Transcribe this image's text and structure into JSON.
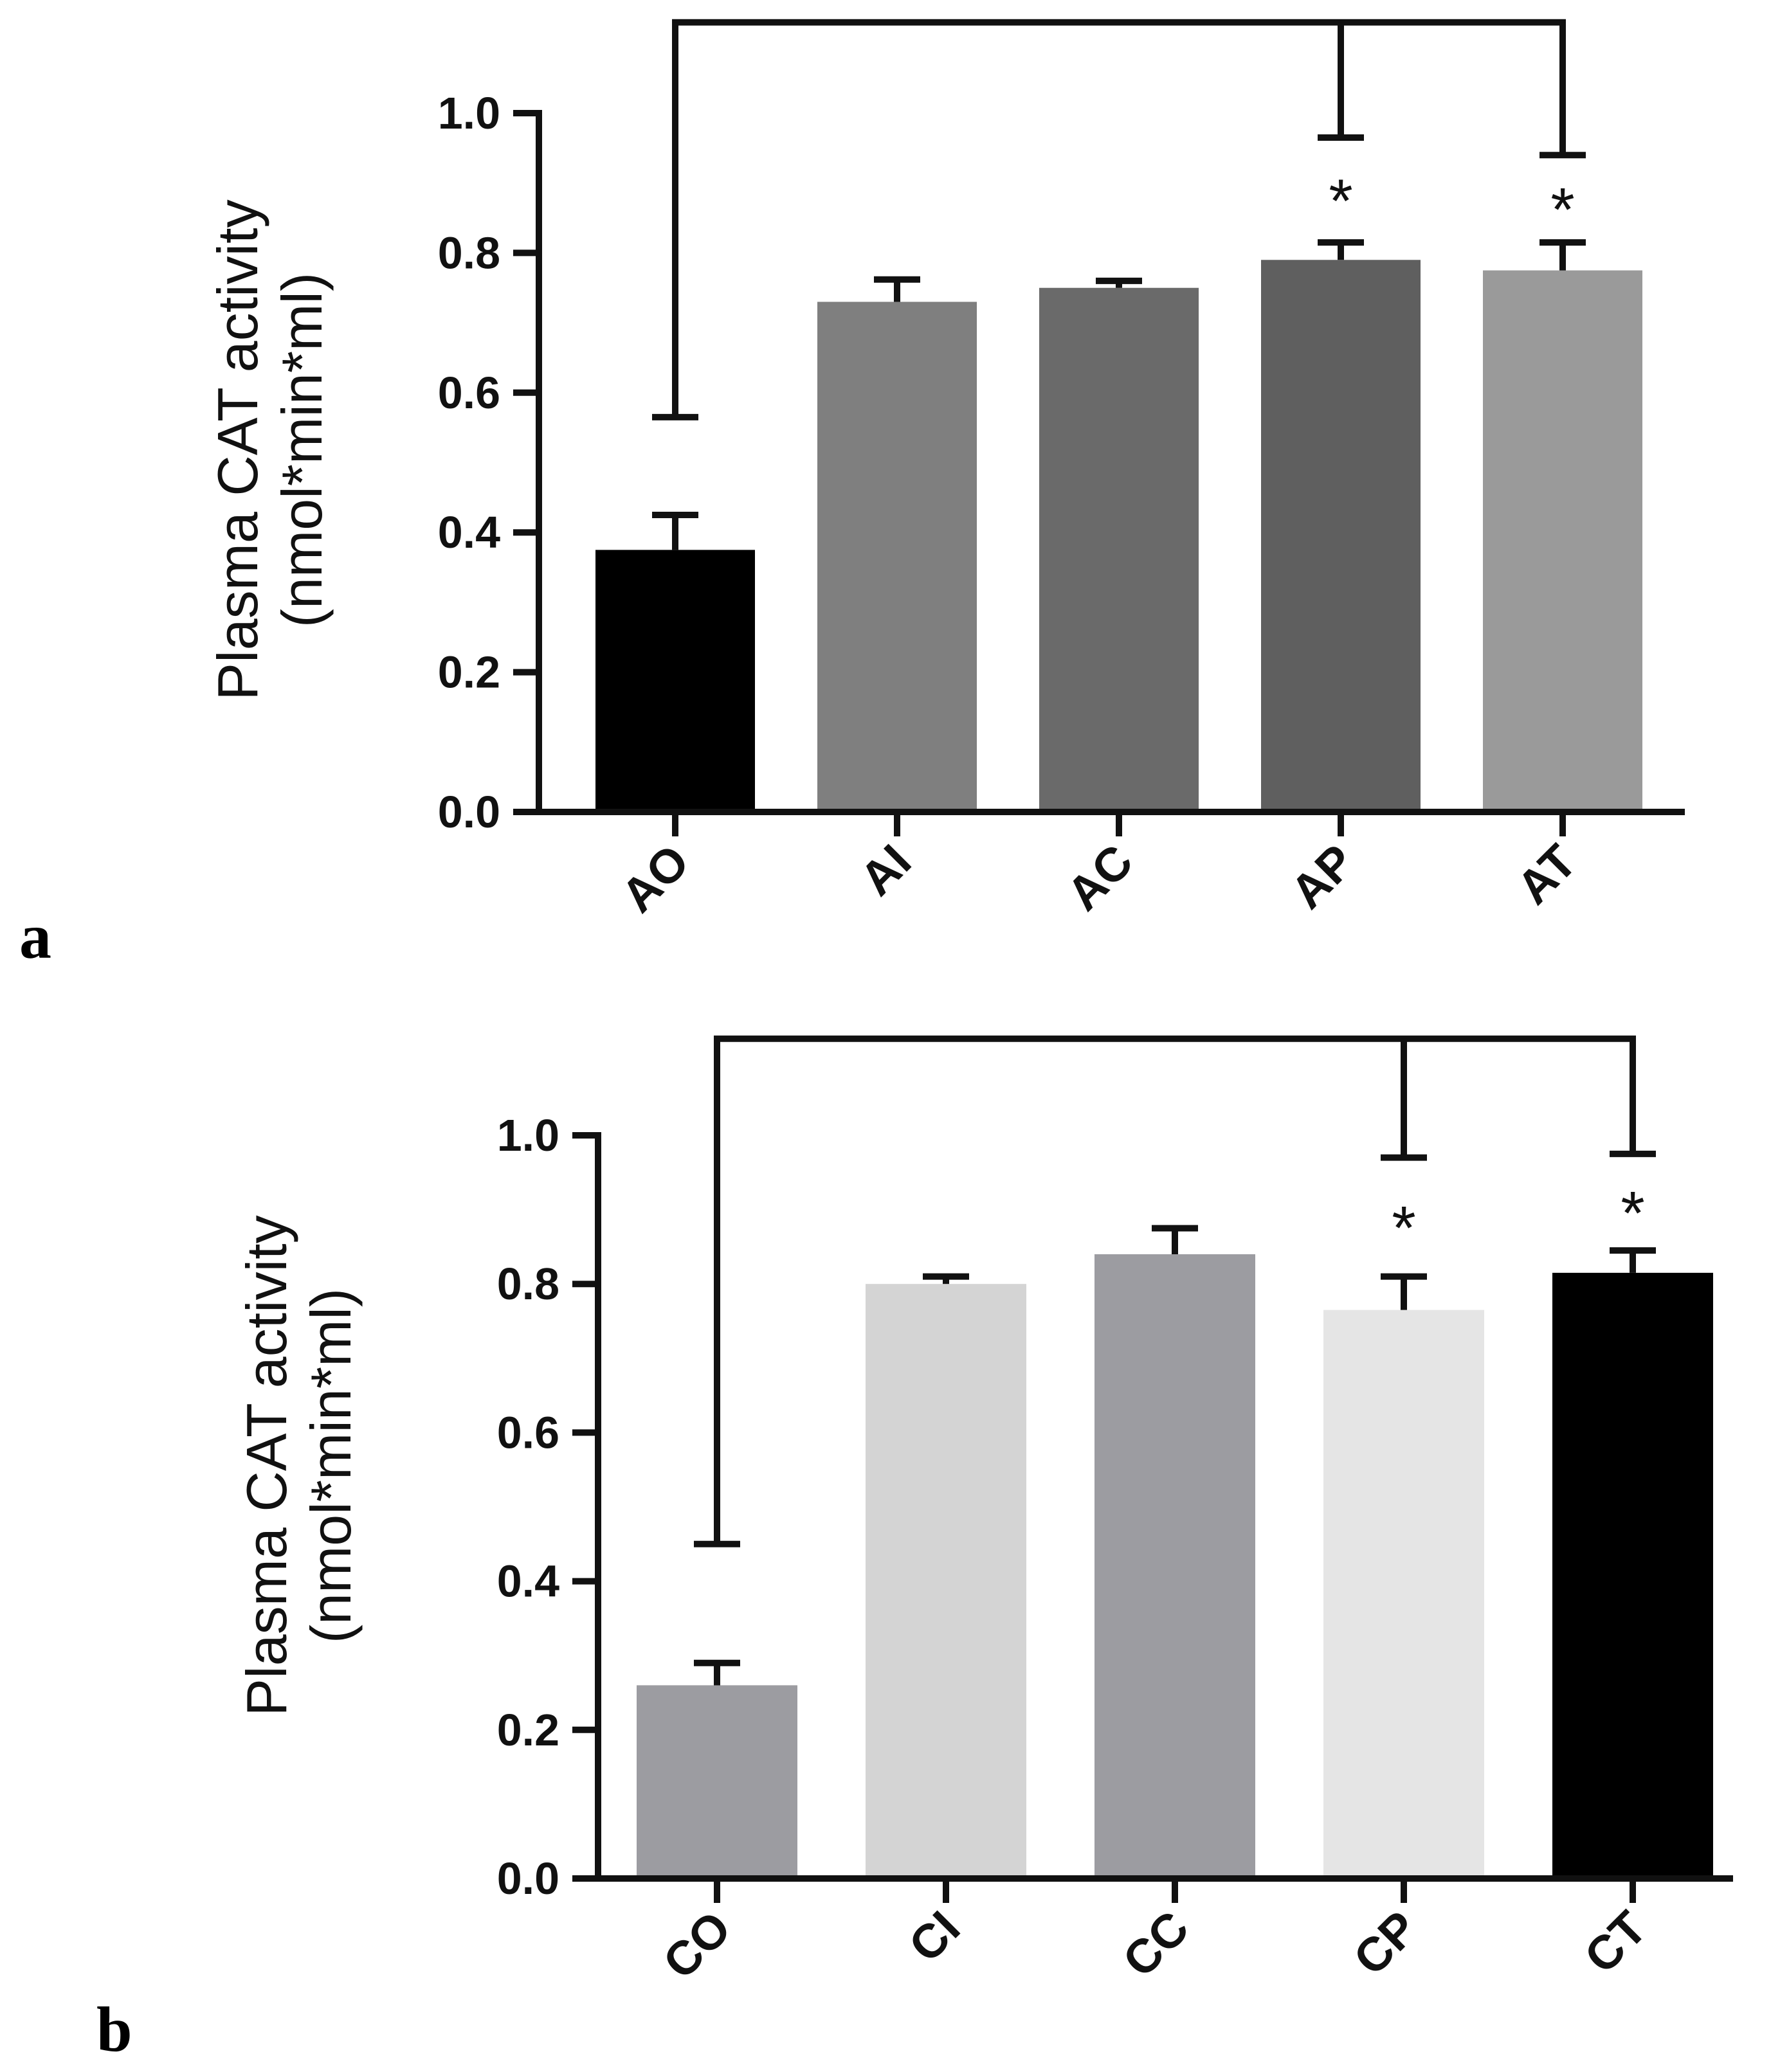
{
  "chart_data": [
    {
      "type": "bar",
      "panel_label": "a",
      "title": "",
      "xlabel": "",
      "ylabel_line1": "Plasma CAT activity",
      "ylabel_line2": "(nmol*min*ml)",
      "ylim": [
        0,
        1.0
      ],
      "yticks": [
        "0.0",
        "0.2",
        "0.4",
        "0.6",
        "0.8",
        "1.0"
      ],
      "categories": [
        "AO",
        "AI",
        "AC",
        "AP",
        "AT"
      ],
      "values": [
        0.375,
        0.73,
        0.75,
        0.79,
        0.775
      ],
      "errors": [
        0.05,
        0.032,
        0.01,
        0.025,
        0.04
      ],
      "colors": [
        "#000000",
        "#7f7f7f",
        "#6a6a6a",
        "#5f5f5f",
        "#9a9a9a"
      ],
      "significance": {
        "marker": "*",
        "reference": "AO",
        "targets": [
          "AP",
          "AT"
        ],
        "bracket_top": 1.13,
        "reference_end": 0.565,
        "target_ends": [
          0.965,
          0.94
        ]
      }
    },
    {
      "type": "bar",
      "panel_label": "b",
      "title": "",
      "xlabel": "",
      "ylabel_line1": "Plasma CAT activity",
      "ylabel_line2": "(nmol*min*ml)",
      "ylim": [
        0,
        1.0
      ],
      "yticks": [
        "0.0",
        "0.2",
        "0.4",
        "0.6",
        "0.8",
        "1.0"
      ],
      "categories": [
        "CO",
        "CI",
        "CC",
        "CP",
        "CT"
      ],
      "values": [
        0.26,
        0.8,
        0.84,
        0.765,
        0.815
      ],
      "errors": [
        0.03,
        0.01,
        0.035,
        0.045,
        0.03
      ],
      "colors": [
        "#9c9ca1",
        "#d4d4d4",
        "#9c9ca1",
        "#e5e5e5",
        "#000000"
      ],
      "significance": {
        "marker": "*",
        "reference": "CO",
        "targets": [
          "CP",
          "CT"
        ],
        "bracket_top": 1.13,
        "reference_end": 0.45,
        "target_ends": [
          0.97,
          0.975
        ]
      }
    }
  ]
}
